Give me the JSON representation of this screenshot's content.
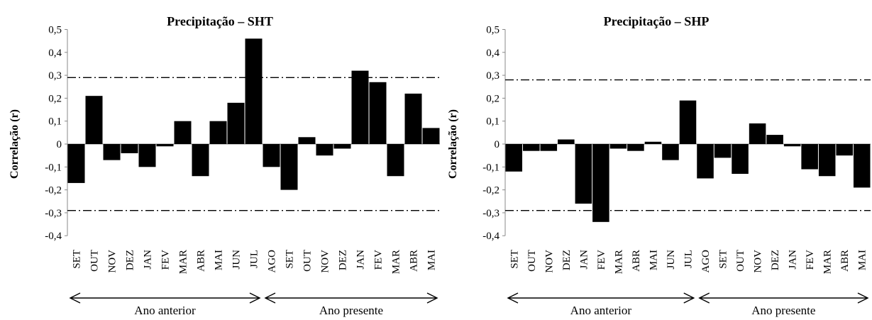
{
  "chart_data": [
    {
      "type": "bar",
      "title": "Precipitação – SHT",
      "ylabel": "Correlação (r)",
      "xlabel": "",
      "ylim": [
        -0.4,
        0.5
      ],
      "yticks": [
        "-0,4",
        "-0,3",
        "-0,2",
        "-0,1",
        "0",
        "0,1",
        "0,2",
        "0,3",
        "0,4",
        "0,5"
      ],
      "significance_lines": [
        0.29,
        -0.29
      ],
      "categories": [
        "SET",
        "OUT",
        "NOV",
        "DEZ",
        "JAN",
        "FEV",
        "MAR",
        "ABR",
        "MAI",
        "JUN",
        "JUL",
        "AGO",
        "SET",
        "OUT",
        "NOV",
        "DEZ",
        "JAN",
        "FEV",
        "MAR",
        "ABR",
        "MAI"
      ],
      "values": [
        -0.17,
        0.21,
        -0.07,
        -0.04,
        -0.1,
        -0.01,
        0.1,
        -0.14,
        0.1,
        0.18,
        0.46,
        -0.1,
        -0.2,
        0.03,
        -0.05,
        -0.02,
        0.32,
        0.27,
        -0.14,
        0.22,
        0.07
      ],
      "periods": [
        {
          "label": "Ano anterior",
          "from": 0,
          "to": 10
        },
        {
          "label": "Ano presente",
          "from": 11,
          "to": 20
        }
      ],
      "grid": false,
      "bar_color": "#000000"
    },
    {
      "type": "bar",
      "title": "Precipitação – SHP",
      "ylabel": "Correlação (r)",
      "xlabel": "",
      "ylim": [
        -0.4,
        0.5
      ],
      "yticks": [
        "-0,4",
        "-0,3",
        "-0,2",
        "-0,1",
        "0",
        "0,1",
        "0,2",
        "0,3",
        "0,4",
        "0,5"
      ],
      "significance_lines": [
        0.28,
        -0.29
      ],
      "categories": [
        "SET",
        "OUT",
        "NOV",
        "DEZ",
        "JAN",
        "FEV",
        "MAR",
        "ABR",
        "MAI",
        "JUN",
        "JUL",
        "AGO",
        "SET",
        "OUT",
        "NOV",
        "DEZ",
        "JAN",
        "FEV",
        "MAR",
        "ABR",
        "MAI"
      ],
      "values": [
        -0.12,
        -0.03,
        -0.03,
        0.02,
        -0.26,
        -0.34,
        -0.02,
        -0.03,
        0.01,
        -0.07,
        0.19,
        -0.15,
        -0.06,
        -0.13,
        0.09,
        0.04,
        -0.01,
        -0.11,
        -0.14,
        -0.05,
        -0.19
      ],
      "periods": [
        {
          "label": "Ano anterior",
          "from": 0,
          "to": 10
        },
        {
          "label": "Ano presente",
          "from": 11,
          "to": 20
        }
      ],
      "grid": false,
      "bar_color": "#000000"
    }
  ]
}
